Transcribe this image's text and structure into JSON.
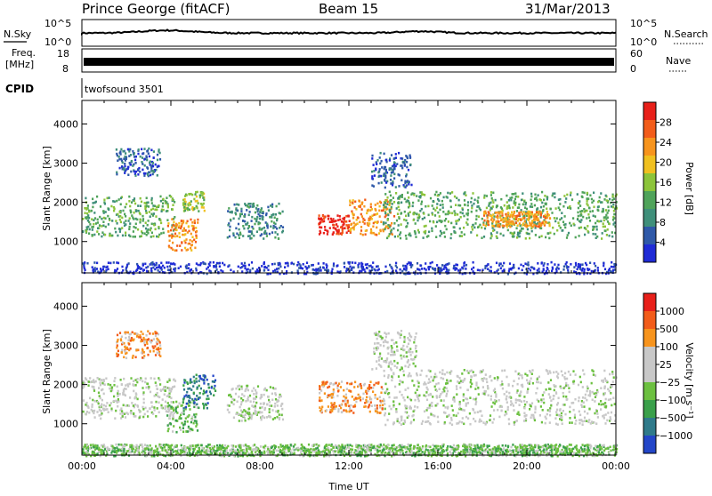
{
  "header": {
    "station": "Prince George (fitACF)",
    "beam": "Beam 15",
    "date": "31/Mar/2013"
  },
  "strip": {
    "nsky_label": "N.Sky",
    "nsearch_label": "N.Search",
    "left_ticks": [
      "10^5",
      "10^0"
    ],
    "right_ticks": [
      "10^5",
      "10^0"
    ],
    "freq_label": "Freq.",
    "freq_unit": "[MHz]",
    "freq_ticks": [
      "18",
      "8"
    ],
    "nave_label": "Nave",
    "nave_ticks": [
      "60",
      "0"
    ],
    "cpid_label": "CPID",
    "cpid_value": "twofsound 3501"
  },
  "colors": {
    "power": [
      "#1f2bd6",
      "#2f59a8",
      "#3f8f7a",
      "#4fa35a",
      "#8cc43a",
      "#f0c020",
      "#f7941d",
      "#f25c1a",
      "#e8201a"
    ],
    "velocity": [
      "#2346c8",
      "#2f7a8a",
      "#3aa04a",
      "#6cc040",
      "#c8c8c8",
      "#c8c8c8",
      "#f7941d",
      "#f25c1a",
      "#e8201a"
    ]
  },
  "chart_data": [
    {
      "type": "heatmap",
      "name_hint": "power-panel",
      "ylabel": "Slant Range [km]",
      "y_ticks": [
        1000,
        2000,
        3000,
        4000
      ],
      "ylim": [
        200,
        4600
      ],
      "x_ticks": [
        "00:00",
        "04:00",
        "08:00",
        "12:00",
        "16:00",
        "20:00",
        "00:00"
      ],
      "xlim_hours": [
        0,
        24
      ],
      "colorbar": {
        "label": "Power [dB]",
        "ticks": [
          "28",
          "24",
          "20",
          "16",
          "12",
          "8",
          "4"
        ]
      },
      "bands": [
        {
          "t0": 0.0,
          "t1": 4.2,
          "r0": 1150,
          "r1": 2200,
          "level": 3
        },
        {
          "t0": 1.5,
          "t1": 3.5,
          "r0": 2700,
          "r1": 3400,
          "level": 1
        },
        {
          "t0": 3.8,
          "t1": 5.2,
          "r0": 800,
          "r1": 1600,
          "level": 6
        },
        {
          "t0": 4.5,
          "t1": 5.5,
          "r0": 1800,
          "r1": 2300,
          "level": 4
        },
        {
          "t0": 6.5,
          "t1": 9.0,
          "r0": 1100,
          "r1": 2000,
          "level": 2
        },
        {
          "t0": 10.6,
          "t1": 12.0,
          "r0": 1200,
          "r1": 1700,
          "level": 8
        },
        {
          "t0": 12.0,
          "t1": 14.0,
          "r0": 1200,
          "r1": 2100,
          "level": 6
        },
        {
          "t0": 13.5,
          "t1": 24.0,
          "r0": 1100,
          "r1": 2300,
          "level": 3
        },
        {
          "t0": 18.0,
          "t1": 21.0,
          "r0": 1400,
          "r1": 1800,
          "level": 6
        },
        {
          "t0": 13.0,
          "t1": 14.8,
          "r0": 2400,
          "r1": 3300,
          "level": 1
        },
        {
          "t0": 0.0,
          "t1": 24.0,
          "r0": 200,
          "r1": 500,
          "level": 0
        }
      ]
    },
    {
      "type": "heatmap",
      "name_hint": "velocity-panel",
      "ylabel": "Slant Range [km]",
      "y_ticks": [
        1000,
        2000,
        3000,
        4000
      ],
      "ylim": [
        200,
        4600
      ],
      "x_ticks": [
        "00:00",
        "04:00",
        "08:00",
        "12:00",
        "16:00",
        "20:00",
        "00:00"
      ],
      "xlim_hours": [
        0,
        24
      ],
      "xlabel": "Time UT",
      "colorbar": {
        "label": "Velocity [m s⁻¹]",
        "ticks": [
          "1000",
          "500",
          "100",
          "25",
          "−25",
          "−100",
          "−500",
          "−1000"
        ]
      },
      "bands": [
        {
          "t0": 0.0,
          "t1": 4.2,
          "r0": 1150,
          "r1": 2200,
          "level": 4
        },
        {
          "t0": 1.5,
          "t1": 3.5,
          "r0": 2700,
          "r1": 3400,
          "level": 6
        },
        {
          "t0": 3.8,
          "t1": 5.2,
          "r0": 800,
          "r1": 1600,
          "level": 3
        },
        {
          "t0": 4.5,
          "t1": 6.0,
          "r0": 1400,
          "r1": 2300,
          "level": 1
        },
        {
          "t0": 6.5,
          "t1": 9.0,
          "r0": 1100,
          "r1": 2000,
          "level": 4
        },
        {
          "t0": 10.6,
          "t1": 13.5,
          "r0": 1300,
          "r1": 2100,
          "level": 6
        },
        {
          "t0": 13.5,
          "t1": 24.0,
          "r0": 1000,
          "r1": 2400,
          "level": 4
        },
        {
          "t0": 13.0,
          "t1": 15.0,
          "r0": 2400,
          "r1": 3400,
          "level": 4
        },
        {
          "t0": 0.0,
          "t1": 24.0,
          "r0": 200,
          "r1": 500,
          "level": 3
        }
      ]
    }
  ]
}
